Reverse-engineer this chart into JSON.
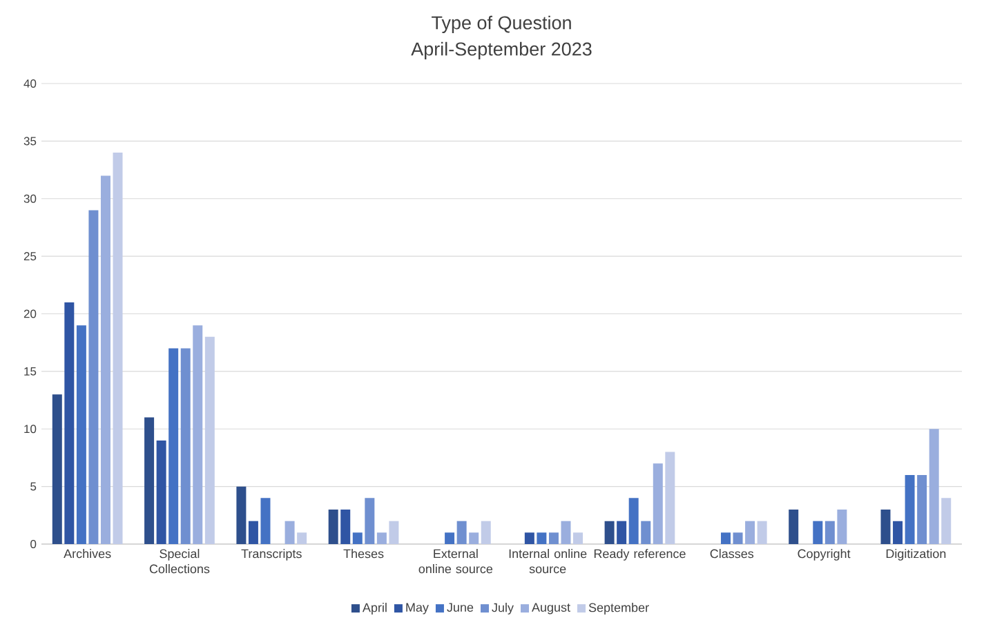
{
  "chart_data": {
    "type": "bar",
    "title": "Type of Question",
    "subtitle": "April-September 2023",
    "categories": [
      "Archives",
      "Special Collections",
      "Transcripts",
      "Theses",
      "External online source",
      "Internal online source",
      "Ready reference",
      "Classes",
      "Copyright",
      "Digitization"
    ],
    "series": [
      {
        "name": "April",
        "color": "#2e4f8c",
        "values": [
          13,
          11,
          5,
          3,
          0,
          0,
          2,
          0,
          3,
          3
        ]
      },
      {
        "name": "May",
        "color": "#2f55a4",
        "values": [
          21,
          9,
          2,
          3,
          0,
          1,
          2,
          0,
          0,
          2
        ]
      },
      {
        "name": "June",
        "color": "#4472c4",
        "values": [
          19,
          17,
          4,
          1,
          1,
          1,
          4,
          1,
          2,
          6
        ]
      },
      {
        "name": "July",
        "color": "#6f8fd0",
        "values": [
          29,
          17,
          0,
          4,
          2,
          1,
          2,
          1,
          2,
          6
        ]
      },
      {
        "name": "August",
        "color": "#9aaede",
        "values": [
          32,
          19,
          2,
          1,
          1,
          2,
          7,
          2,
          3,
          10
        ]
      },
      {
        "name": "September",
        "color": "#c1cbe8",
        "values": [
          34,
          18,
          1,
          2,
          2,
          1,
          8,
          2,
          0,
          4
        ]
      }
    ],
    "ylim": [
      0,
      40
    ],
    "yticks": [
      0,
      5,
      10,
      15,
      20,
      25,
      30,
      35,
      40
    ],
    "grid": "y",
    "legend": "bottom"
  }
}
